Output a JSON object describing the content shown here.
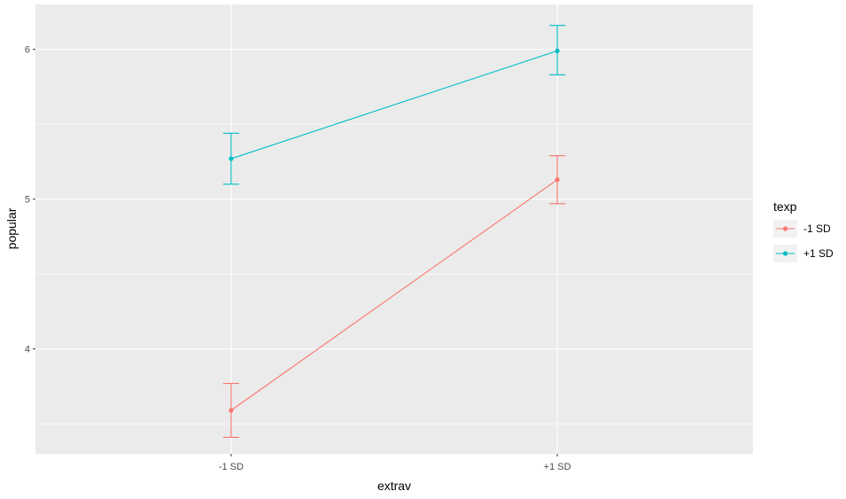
{
  "chart_data": {
    "type": "line",
    "categories": [
      "-1 SD",
      "+1 SD"
    ],
    "xlabel": "extrav",
    "ylabel": "popular",
    "ylim": [
      3.3,
      6.3
    ],
    "y_ticks": [
      4,
      5,
      6
    ],
    "y_tick_labels": [
      "4",
      "5",
      "6"
    ],
    "grid": true,
    "legend": {
      "title": "texp",
      "placement": "right"
    },
    "series": [
      {
        "name": "-1 SD",
        "color": "#F8766D",
        "values": [
          3.59,
          5.13
        ],
        "lower": [
          3.41,
          4.97
        ],
        "upper": [
          3.77,
          5.29
        ]
      },
      {
        "name": "+1 SD",
        "color": "#00BFC4",
        "values": [
          5.27,
          5.99
        ],
        "lower": [
          5.1,
          5.83
        ],
        "upper": [
          5.44,
          6.16
        ]
      }
    ]
  }
}
